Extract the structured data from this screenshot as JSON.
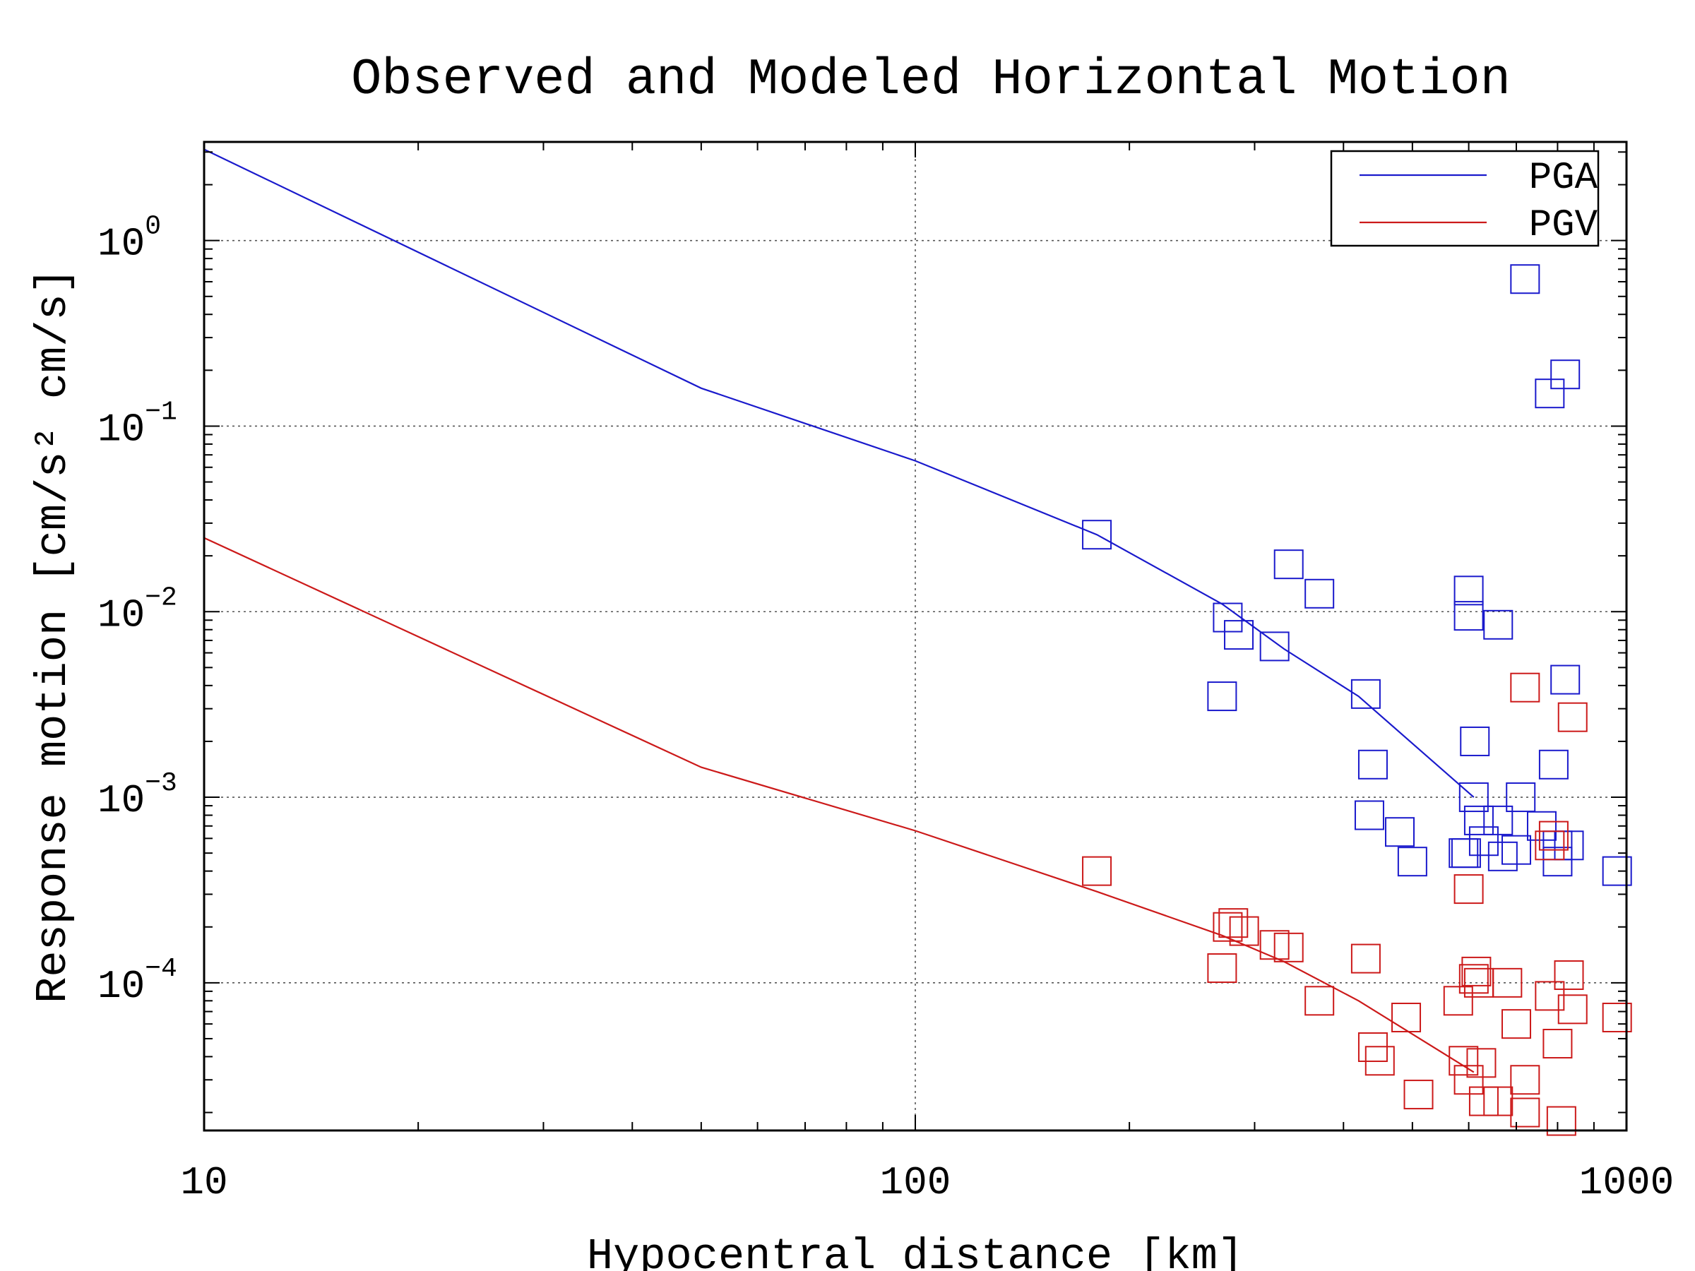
{
  "chart_data": {
    "type": "scatter",
    "title": "Observed and Modeled Horizontal Motion",
    "xlabel": "Hypocentral distance [km]",
    "ylabel": "Response motion  [cm/s²  cm/s]",
    "xscale": "log",
    "yscale": "log",
    "xlim": [
      10,
      1000
    ],
    "ylim": [
      1.6e-05,
      3.4
    ],
    "x_ticks": [
      {
        "value": 10,
        "label": "10"
      },
      {
        "value": 100,
        "label": "100"
      },
      {
        "value": 1000,
        "label": "1000"
      }
    ],
    "y_ticks": [
      {
        "value": 1,
        "base": "10",
        "exp": "0"
      },
      {
        "value": 0.1,
        "base": "10",
        "exp": "−1"
      },
      {
        "value": 0.01,
        "base": "10",
        "exp": "−2"
      },
      {
        "value": 0.001,
        "base": "10",
        "exp": "−3"
      },
      {
        "value": 0.0001,
        "base": "10",
        "exp": "−4"
      }
    ],
    "grid": true,
    "legend": {
      "position": "top-right",
      "entries": [
        "PGA",
        "PGV"
      ]
    },
    "series": [
      {
        "name": "PGA",
        "color": "#1a1acc",
        "model_line": [
          [
            10,
            3.1
          ],
          [
            50,
            0.16
          ],
          [
            100,
            0.065
          ],
          [
            180,
            0.026
          ],
          [
            270,
            0.011
          ],
          [
            330,
            0.0063
          ],
          [
            420,
            0.0035
          ],
          [
            610,
            0.001
          ]
        ],
        "observed": [
          [
            180,
            0.026
          ],
          [
            275,
            0.0093
          ],
          [
            285,
            0.0075
          ],
          [
            320,
            0.0065
          ],
          [
            335,
            0.018
          ],
          [
            370,
            0.0125
          ],
          [
            270,
            0.0035
          ],
          [
            430,
            0.0036
          ],
          [
            440,
            0.0015
          ],
          [
            435,
            0.0008
          ],
          [
            480,
            0.00065
          ],
          [
            500,
            0.00045
          ],
          [
            590,
            0.0005
          ],
          [
            595,
            0.0005
          ],
          [
            600,
            0.013
          ],
          [
            600,
            0.0095
          ],
          [
            610,
            0.001
          ],
          [
            612,
            0.002
          ],
          [
            620,
            0.00075
          ],
          [
            630,
            0.00058
          ],
          [
            660,
            0.0085
          ],
          [
            660,
            0.00075
          ],
          [
            670,
            0.00048
          ],
          [
            700,
            0.00052
          ],
          [
            710,
            0.001
          ],
          [
            720,
            0.62
          ],
          [
            760,
            0.0007
          ],
          [
            780,
            0.15
          ],
          [
            790,
            0.0015
          ],
          [
            800,
            0.00055
          ],
          [
            800,
            0.00045
          ],
          [
            820,
            0.19
          ],
          [
            820,
            0.0043
          ],
          [
            830,
            0.00055
          ],
          [
            970,
            0.0004
          ]
        ]
      },
      {
        "name": "PGV",
        "color": "#cc1a1a",
        "model_line": [
          [
            10,
            0.025
          ],
          [
            50,
            0.00145
          ],
          [
            100,
            0.00066
          ],
          [
            180,
            0.00031
          ],
          [
            270,
            0.00018
          ],
          [
            330,
            0.00013
          ],
          [
            420,
            8e-05
          ],
          [
            610,
            3.3e-05
          ]
        ],
        "observed": [
          [
            180,
            0.0004
          ],
          [
            275,
            0.0002
          ],
          [
            280,
            0.00021
          ],
          [
            290,
            0.00019
          ],
          [
            270,
            0.00012
          ],
          [
            320,
            0.00016
          ],
          [
            335,
            0.000155
          ],
          [
            370,
            8e-05
          ],
          [
            430,
            0.000135
          ],
          [
            440,
            4.5e-05
          ],
          [
            450,
            3.8e-05
          ],
          [
            490,
            6.5e-05
          ],
          [
            510,
            2.5e-05
          ],
          [
            580,
            8e-05
          ],
          [
            590,
            3.8e-05
          ],
          [
            600,
            3e-05
          ],
          [
            600,
            0.00032
          ],
          [
            610,
            0.000105
          ],
          [
            615,
            0.000115
          ],
          [
            620,
            0.0001
          ],
          [
            625,
            3.7e-05
          ],
          [
            630,
            2.3e-05
          ],
          [
            660,
            2.3e-05
          ],
          [
            680,
            0.0001
          ],
          [
            700,
            6e-05
          ],
          [
            720,
            3e-05
          ],
          [
            720,
            0.0039
          ],
          [
            720,
            2e-05
          ],
          [
            780,
            0.00055
          ],
          [
            780,
            8.5e-05
          ],
          [
            790,
            0.00062
          ],
          [
            800,
            4.7e-05
          ],
          [
            810,
            1.8e-05
          ],
          [
            830,
            0.00011
          ],
          [
            840,
            7.2e-05
          ],
          [
            840,
            0.0027
          ],
          [
            970,
            6.5e-05
          ]
        ]
      }
    ]
  }
}
